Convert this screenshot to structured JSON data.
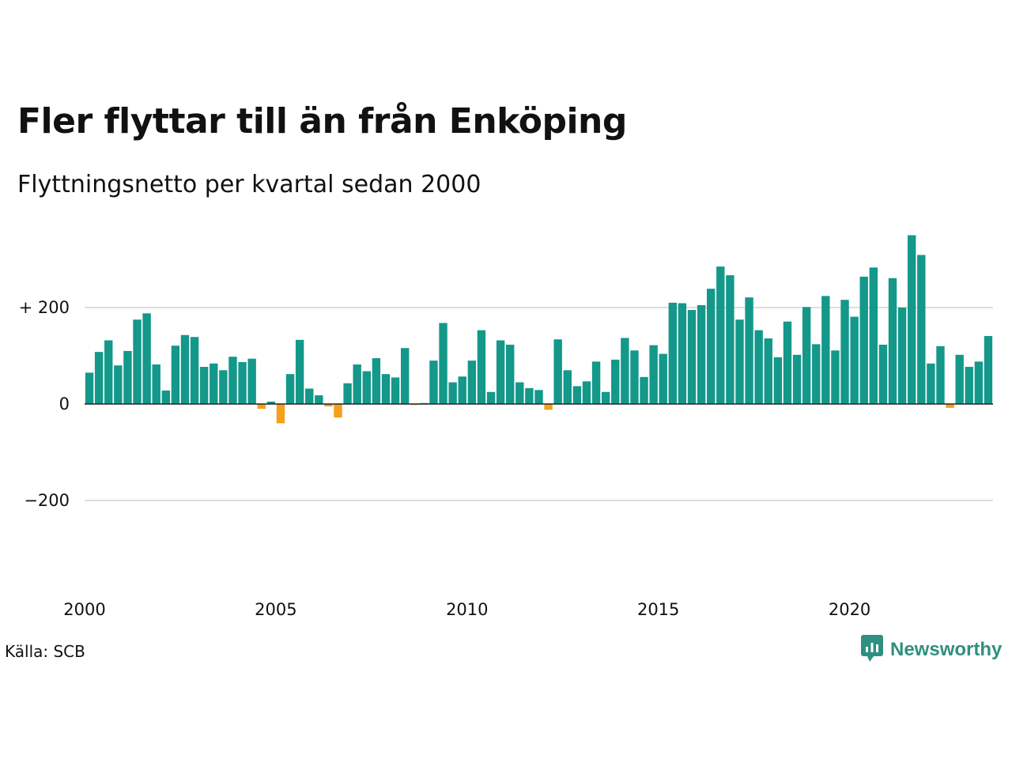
{
  "title": "Fler flyttar till än från Enköping",
  "subtitle": "Flyttningsnetto per kvartal sedan 2000",
  "source": "Källa: SCB",
  "brand": {
    "name": "Newsworthy",
    "icon": "newsworthy-logo-icon"
  },
  "colors": {
    "positive": "#13988a",
    "negative": "#f5a01a",
    "grid": "#dddddd",
    "brand": "#2f8f80"
  },
  "chart_data": {
    "type": "bar",
    "title": "Fler flyttar till än från Enköping",
    "subtitle": "Flyttningsnetto per kvartal sedan 2000",
    "xlabel": "",
    "ylabel": "",
    "x_start": 2000,
    "periods_per_year": 4,
    "x_ticks": [
      "2000",
      "2005",
      "2010",
      "2015",
      "2020"
    ],
    "y_ticks": [
      {
        "value": 200,
        "label": "+ 200"
      },
      {
        "value": 0,
        "label": "0"
      },
      {
        "value": -200,
        "label": "−200"
      }
    ],
    "ylim": [
      -380,
      360
    ],
    "grid": true,
    "values": [
      65,
      108,
      132,
      80,
      110,
      175,
      188,
      82,
      28,
      121,
      143,
      139,
      77,
      84,
      70,
      98,
      87,
      94,
      -10,
      5,
      -40,
      62,
      133,
      32,
      18,
      -5,
      -28,
      43,
      82,
      68,
      95,
      62,
      55,
      116,
      -2,
      2,
      90,
      168,
      45,
      57,
      90,
      153,
      25,
      132,
      123,
      45,
      33,
      29,
      -12,
      134,
      70,
      37,
      47,
      88,
      25,
      92,
      137,
      111,
      56,
      122,
      104,
      210,
      209,
      195,
      205,
      239,
      285,
      267,
      175,
      221,
      153,
      136,
      97,
      171,
      102,
      201,
      124,
      224,
      111,
      216,
      181,
      264,
      283,
      123,
      261,
      200,
      350,
      309,
      84,
      120,
      -8,
      102,
      77,
      88,
      141
    ]
  }
}
